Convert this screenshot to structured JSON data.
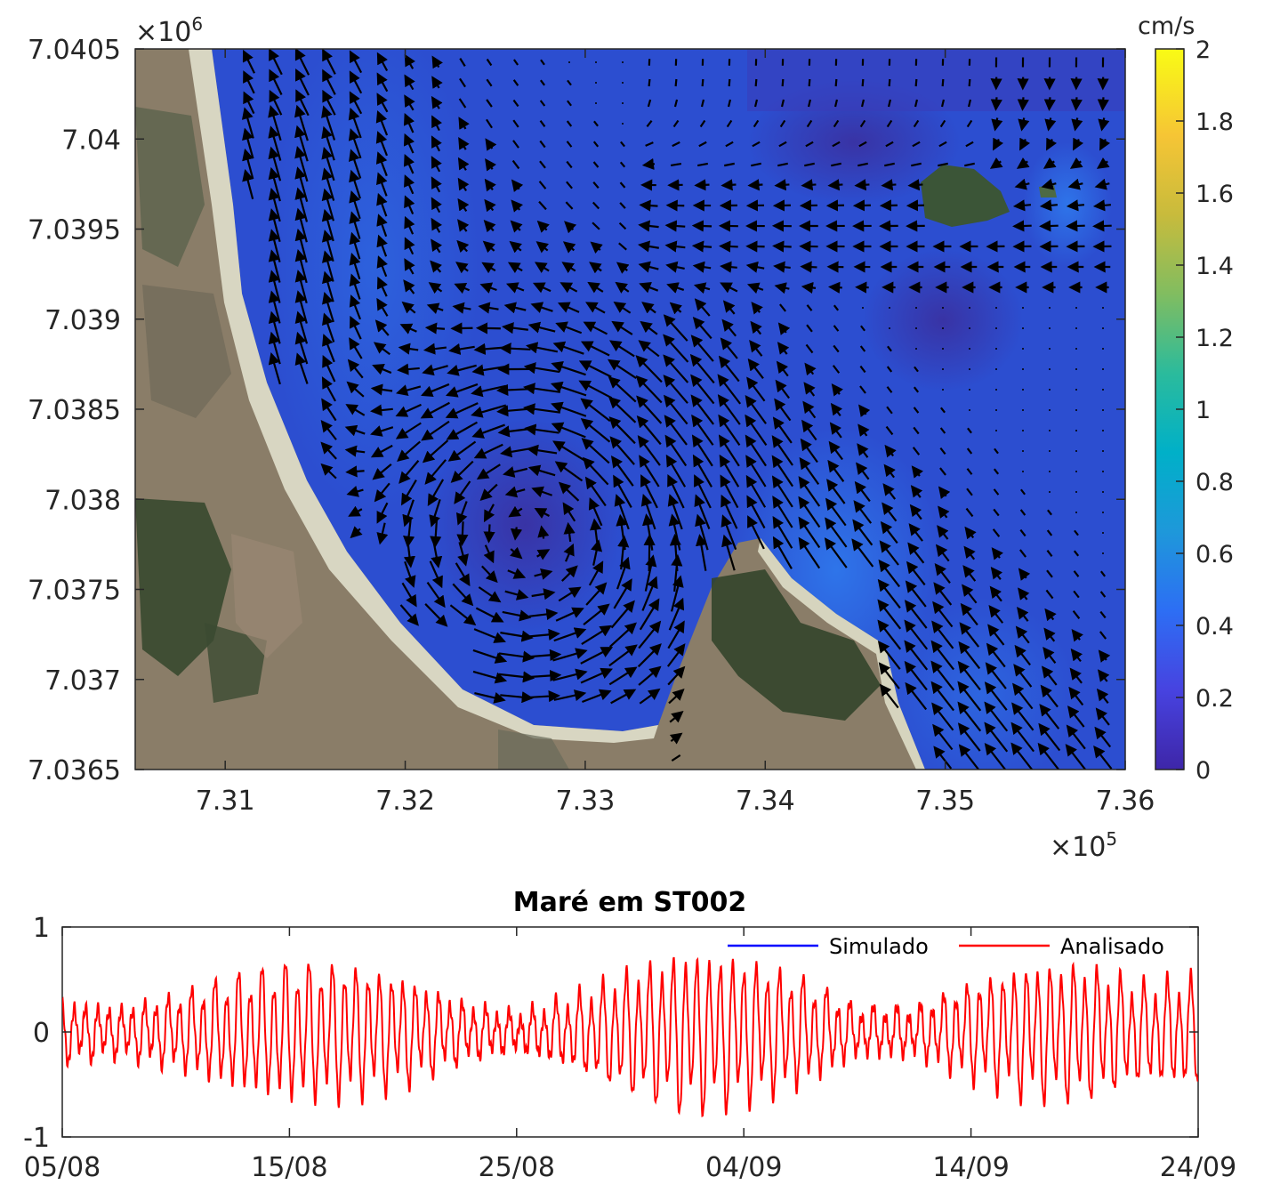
{
  "chart_data": [
    {
      "type": "heatmap",
      "x_ticks": [
        "7.31",
        "7.32",
        "7.33",
        "7.34",
        "7.35",
        "7.36"
      ],
      "x_tick_values": [
        731000,
        732000,
        733000,
        734000,
        735000,
        736000
      ],
      "x_exponent": "×10",
      "x_exponent_power": "5",
      "xlim": [
        730500,
        736000
      ],
      "y_ticks": [
        "7.0405",
        "7.04",
        "7.0395",
        "7.039",
        "7.0385",
        "7.038",
        "7.0375",
        "7.037",
        "7.0365"
      ],
      "y_tick_values": [
        7040500,
        7040000,
        7039500,
        7039000,
        7038500,
        7038000,
        7037500,
        7037000,
        7036500
      ],
      "y_exponent": "×10",
      "y_exponent_power": "6",
      "ylim": [
        7036500,
        7040500
      ],
      "colorbar": {
        "label": "cm/s",
        "ticks": [
          "2",
          "1.8",
          "1.6",
          "1.4",
          "1.2",
          "1",
          "0.8",
          "0.6",
          "0.4",
          "0.2",
          "0"
        ],
        "range": [
          0,
          2
        ],
        "colormap": [
          "#3e26a8",
          "#4743e0",
          "#2d6ef4",
          "#1e98da",
          "#00b0c8",
          "#2bbb9c",
          "#81bd60",
          "#c8bb3c",
          "#f6c535",
          "#f9fb15"
        ]
      },
      "background": "satellite image with quiver (arrow) current vectors"
    },
    {
      "type": "line",
      "title": "Maré em ST002",
      "x_ticks": [
        "05/08",
        "15/08",
        "25/08",
        "04/09",
        "14/09",
        "24/09"
      ],
      "xlim": [
        "05/08",
        "24/09"
      ],
      "y_ticks": [
        "1",
        "0",
        "-1"
      ],
      "ylim": [
        -1,
        1
      ],
      "legend_position": "top-right",
      "series": [
        {
          "name": "Simulado",
          "color": "#0000ff",
          "values": []
        },
        {
          "name": "Analisado",
          "color": "#ff0000",
          "description_values": "semi-diurnal tide, amplitude envelope (m) sampled every 2.5 days",
          "envelope_days": [
            0,
            2.5,
            5,
            7.5,
            10,
            12.5,
            15,
            17.5,
            20,
            22.5,
            25,
            27.5,
            30,
            32.5,
            35,
            37.5,
            40,
            42.5,
            45,
            47.5,
            50
          ],
          "envelope_amplitude": [
            0.25,
            0.2,
            0.3,
            0.45,
            0.55,
            0.55,
            0.45,
            0.25,
            0.15,
            0.3,
            0.5,
            0.65,
            0.6,
            0.45,
            0.2,
            0.2,
            0.4,
            0.55,
            0.55,
            0.4,
            0.45
          ]
        }
      ]
    }
  ]
}
